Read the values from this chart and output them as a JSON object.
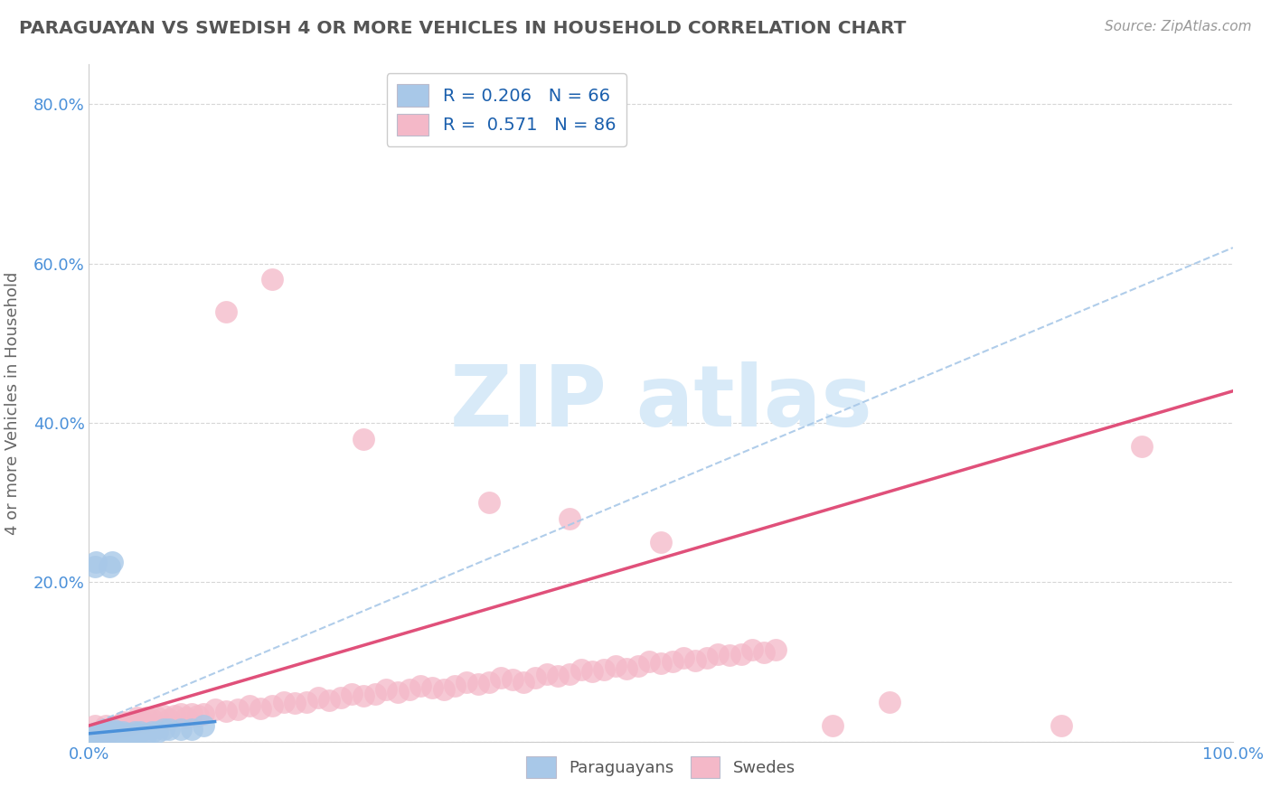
{
  "title": "PARAGUAYAN VS SWEDISH 4 OR MORE VEHICLES IN HOUSEHOLD CORRELATION CHART",
  "source": "Source: ZipAtlas.com",
  "ylabel": "4 or more Vehicles in Household",
  "xlim": [
    0.0,
    1.0
  ],
  "ylim": [
    0.0,
    0.85
  ],
  "paraguayan_color": "#a8c8e8",
  "paraguayan_edge": "#6aaad4",
  "swedish_color": "#f4b8c8",
  "swedish_edge": "#e87898",
  "paraguayan_line_color": "#4a90d9",
  "swedish_line_color": "#e0507a",
  "dashed_line_color": "#a8c8e8",
  "title_color": "#555555",
  "source_color": "#999999",
  "ylabel_color": "#666666",
  "tick_color": "#4a90d9",
  "grid_color": "#cccccc",
  "legend_text_color": "#1a5fad",
  "watermark_color": "#d8eaf8",
  "par_R": "0.206",
  "par_N": "66",
  "swe_R": "0.571",
  "swe_N": "86",
  "legend_label_par": "R = 0.206   N = 66",
  "legend_label_swe": "R =  0.571   N = 86",
  "bottom_label_par": "Paraguayans",
  "bottom_label_swe": "Swedes",
  "paraguayan_points": [
    [
      0.001,
      0.001
    ],
    [
      0.002,
      0.002
    ],
    [
      0.002,
      0.005
    ],
    [
      0.003,
      0.003
    ],
    [
      0.003,
      0.005
    ],
    [
      0.004,
      0.004
    ],
    [
      0.004,
      0.008
    ],
    [
      0.005,
      0.002
    ],
    [
      0.005,
      0.005
    ],
    [
      0.005,
      0.01
    ],
    [
      0.006,
      0.003
    ],
    [
      0.006,
      0.006
    ],
    [
      0.007,
      0.005
    ],
    [
      0.007,
      0.008
    ],
    [
      0.008,
      0.004
    ],
    [
      0.008,
      0.006
    ],
    [
      0.008,
      0.01
    ],
    [
      0.009,
      0.005
    ],
    [
      0.009,
      0.008
    ],
    [
      0.01,
      0.005
    ],
    [
      0.01,
      0.008
    ],
    [
      0.01,
      0.012
    ],
    [
      0.011,
      0.006
    ],
    [
      0.011,
      0.01
    ],
    [
      0.012,
      0.005
    ],
    [
      0.012,
      0.01
    ],
    [
      0.013,
      0.006
    ],
    [
      0.013,
      0.012
    ],
    [
      0.014,
      0.007
    ],
    [
      0.015,
      0.005
    ],
    [
      0.015,
      0.01
    ],
    [
      0.016,
      0.008
    ],
    [
      0.016,
      0.012
    ],
    [
      0.017,
      0.006
    ],
    [
      0.018,
      0.008
    ],
    [
      0.018,
      0.012
    ],
    [
      0.019,
      0.007
    ],
    [
      0.02,
      0.008
    ],
    [
      0.02,
      0.012
    ],
    [
      0.021,
      0.009
    ],
    [
      0.022,
      0.008
    ],
    [
      0.022,
      0.014
    ],
    [
      0.024,
      0.01
    ],
    [
      0.025,
      0.008
    ],
    [
      0.025,
      0.012
    ],
    [
      0.026,
      0.009
    ],
    [
      0.028,
      0.01
    ],
    [
      0.03,
      0.008
    ],
    [
      0.03,
      0.012
    ],
    [
      0.032,
      0.01
    ],
    [
      0.035,
      0.01
    ],
    [
      0.04,
      0.012
    ],
    [
      0.042,
      0.01
    ],
    [
      0.045,
      0.012
    ],
    [
      0.05,
      0.01
    ],
    [
      0.055,
      0.012
    ],
    [
      0.06,
      0.012
    ],
    [
      0.065,
      0.015
    ],
    [
      0.07,
      0.015
    ],
    [
      0.08,
      0.015
    ],
    [
      0.09,
      0.015
    ],
    [
      0.1,
      0.02
    ],
    [
      0.018,
      0.22
    ],
    [
      0.02,
      0.225
    ],
    [
      0.005,
      0.22
    ],
    [
      0.006,
      0.225
    ]
  ],
  "swedish_points": [
    [
      0.005,
      0.02
    ],
    [
      0.01,
      0.01
    ],
    [
      0.012,
      0.015
    ],
    [
      0.015,
      0.02
    ],
    [
      0.018,
      0.012
    ],
    [
      0.02,
      0.015
    ],
    [
      0.022,
      0.018
    ],
    [
      0.025,
      0.02
    ],
    [
      0.028,
      0.015
    ],
    [
      0.03,
      0.025
    ],
    [
      0.032,
      0.02
    ],
    [
      0.035,
      0.025
    ],
    [
      0.038,
      0.022
    ],
    [
      0.04,
      0.025
    ],
    [
      0.042,
      0.03
    ],
    [
      0.045,
      0.028
    ],
    [
      0.048,
      0.025
    ],
    [
      0.05,
      0.03
    ],
    [
      0.055,
      0.028
    ],
    [
      0.06,
      0.03
    ],
    [
      0.065,
      0.032
    ],
    [
      0.07,
      0.028
    ],
    [
      0.075,
      0.032
    ],
    [
      0.08,
      0.035
    ],
    [
      0.085,
      0.03
    ],
    [
      0.09,
      0.035
    ],
    [
      0.095,
      0.032
    ],
    [
      0.1,
      0.035
    ],
    [
      0.11,
      0.04
    ],
    [
      0.12,
      0.038
    ],
    [
      0.13,
      0.04
    ],
    [
      0.14,
      0.045
    ],
    [
      0.15,
      0.042
    ],
    [
      0.16,
      0.045
    ],
    [
      0.17,
      0.05
    ],
    [
      0.18,
      0.048
    ],
    [
      0.19,
      0.05
    ],
    [
      0.2,
      0.055
    ],
    [
      0.21,
      0.052
    ],
    [
      0.22,
      0.055
    ],
    [
      0.23,
      0.06
    ],
    [
      0.24,
      0.058
    ],
    [
      0.25,
      0.06
    ],
    [
      0.26,
      0.065
    ],
    [
      0.27,
      0.062
    ],
    [
      0.28,
      0.065
    ],
    [
      0.29,
      0.07
    ],
    [
      0.3,
      0.068
    ],
    [
      0.31,
      0.065
    ],
    [
      0.32,
      0.07
    ],
    [
      0.33,
      0.075
    ],
    [
      0.34,
      0.072
    ],
    [
      0.35,
      0.075
    ],
    [
      0.36,
      0.08
    ],
    [
      0.37,
      0.078
    ],
    [
      0.38,
      0.075
    ],
    [
      0.39,
      0.08
    ],
    [
      0.4,
      0.085
    ],
    [
      0.41,
      0.082
    ],
    [
      0.42,
      0.085
    ],
    [
      0.43,
      0.09
    ],
    [
      0.44,
      0.088
    ],
    [
      0.45,
      0.09
    ],
    [
      0.46,
      0.095
    ],
    [
      0.47,
      0.092
    ],
    [
      0.48,
      0.095
    ],
    [
      0.49,
      0.1
    ],
    [
      0.5,
      0.098
    ],
    [
      0.51,
      0.1
    ],
    [
      0.52,
      0.105
    ],
    [
      0.53,
      0.102
    ],
    [
      0.54,
      0.105
    ],
    [
      0.55,
      0.11
    ],
    [
      0.56,
      0.108
    ],
    [
      0.57,
      0.11
    ],
    [
      0.58,
      0.115
    ],
    [
      0.59,
      0.112
    ],
    [
      0.6,
      0.115
    ],
    [
      0.12,
      0.54
    ],
    [
      0.16,
      0.58
    ],
    [
      0.24,
      0.38
    ],
    [
      0.35,
      0.3
    ],
    [
      0.42,
      0.28
    ],
    [
      0.5,
      0.25
    ],
    [
      0.92,
      0.37
    ],
    [
      0.85,
      0.02
    ],
    [
      0.65,
      0.02
    ],
    [
      0.7,
      0.05
    ]
  ]
}
